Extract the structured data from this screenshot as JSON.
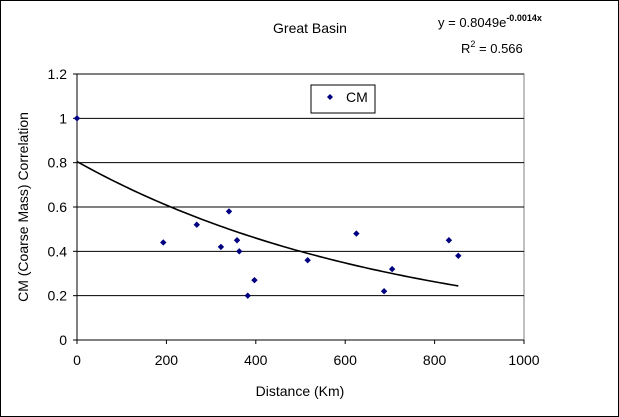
{
  "chart_data": {
    "type": "scatter",
    "title": "Great Basin",
    "xlabel": "Distance (Km)",
    "ylabel": "CM (Coarse Mass) Correlation",
    "xlim": [
      0,
      1000
    ],
    "ylim": [
      0,
      1.2
    ],
    "x_ticks": [
      0,
      200,
      400,
      600,
      800,
      1000
    ],
    "y_ticks": [
      0,
      0.2,
      0.4,
      0.6,
      0.8,
      1,
      1.2
    ],
    "x_tick_labels": [
      "0",
      "200",
      "400",
      "600",
      "800",
      "1000"
    ],
    "y_tick_labels": [
      "0",
      "0.2",
      "0.4",
      "0.6",
      "0.8",
      "1",
      "1.2"
    ],
    "grid": "horizontal",
    "legend_position": "top-center",
    "series": [
      {
        "name": "CM",
        "marker": "diamond",
        "color": "#000080",
        "points": [
          [
            0,
            1.0
          ],
          [
            193,
            0.44
          ],
          [
            268,
            0.52
          ],
          [
            322,
            0.42
          ],
          [
            340,
            0.58
          ],
          [
            358,
            0.45
          ],
          [
            363,
            0.4
          ],
          [
            382,
            0.2
          ],
          [
            397,
            0.27
          ],
          [
            516,
            0.36
          ],
          [
            625,
            0.48
          ],
          [
            687,
            0.22
          ],
          [
            705,
            0.32
          ],
          [
            832,
            0.45
          ],
          [
            853,
            0.38
          ]
        ]
      }
    ],
    "trendline": {
      "type": "exponential",
      "a": 0.8049,
      "b": -0.0014,
      "x_range": [
        0,
        853
      ],
      "color": "#000000"
    },
    "equation": {
      "prefix": "y = 0.8049e",
      "exponent": "-0.0014x"
    },
    "r_squared": {
      "prefix": "R",
      "superscript": "2",
      "suffix": " = 0.566"
    }
  }
}
